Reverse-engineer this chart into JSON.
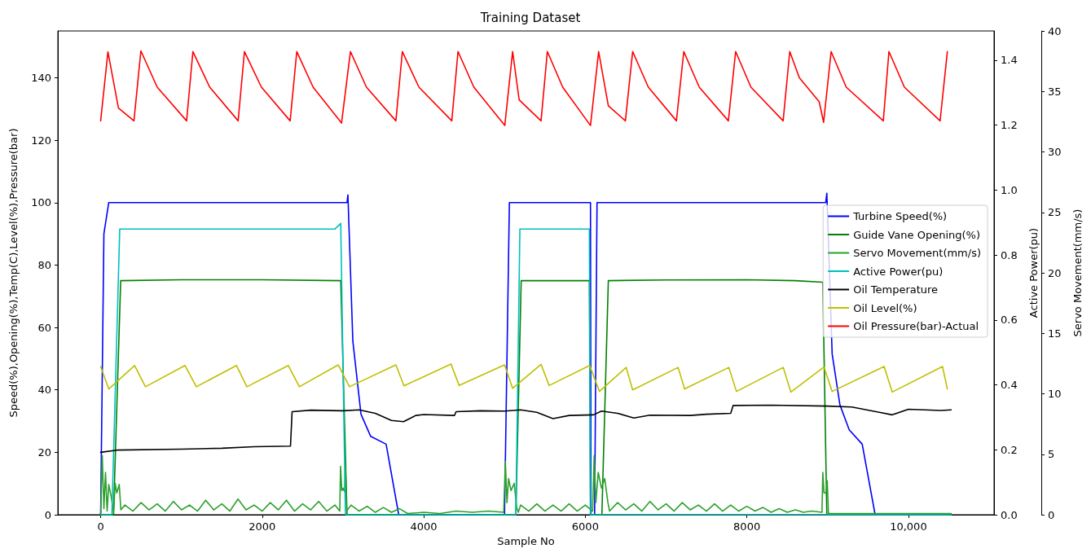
{
  "chart_data": {
    "type": "line",
    "title": "Training Dataset",
    "xlabel": "Sample No",
    "ylabel": "Speed(%),Opening(%),Temp(C),Level(%),Pressure(bar)",
    "y2label": "Active Power(pu)",
    "y3label": "Servo Movement(mm/s)",
    "xlim": [
      -530,
      11060
    ],
    "xticks": [
      0,
      2000,
      4000,
      6000,
      8000,
      {
        "value": 10000,
        "label": "10,000"
      }
    ],
    "ylim": [
      0,
      155
    ],
    "yticks": [
      0,
      20,
      40,
      60,
      80,
      100,
      120,
      140
    ],
    "y2lim": [
      0,
      1.49
    ],
    "y2ticks": [
      {
        "value": 0,
        "label": "0.0"
      },
      0.2,
      0.4,
      0.6,
      0.8,
      {
        "value": 1,
        "label": "1.0"
      },
      1.2,
      1.4
    ],
    "y3lim": [
      0,
      40
    ],
    "y3ticks": [
      0,
      5,
      10,
      15,
      20,
      25,
      30,
      35,
      40
    ],
    "grid": false,
    "legend": "right",
    "marker": "none",
    "line_style": "solid",
    "series": [
      {
        "name": "Turbine Speed(%)",
        "color": "#0000ff",
        "x": [
          0,
          40,
          100,
          3050,
          3061,
          3122,
          3223,
          3343,
          3534,
          3690,
          5000,
          5060,
          6064,
          6070,
          6115,
          6145,
          8976,
          8990,
          9056,
          9152,
          9267,
          9428,
          9588,
          10530
        ],
        "values": [
          0,
          90,
          100,
          100,
          102.5,
          55.6,
          32.2,
          25.1,
          22.6,
          0,
          0,
          100,
          100,
          0,
          0,
          100,
          100,
          103,
          51.5,
          35.2,
          27.2,
          22.6,
          0,
          0
        ]
      },
      {
        "name": "Guide Vane Opening(%)",
        "color": "#008000",
        "x": [
          0,
          159,
          248,
          1000,
          2000,
          2972,
          3050,
          5140,
          5206,
          6050,
          6064,
          6205,
          6285,
          7000,
          8000,
          8600,
          8940,
          8990,
          10530
        ],
        "values": [
          0,
          0,
          75,
          75.3,
          75.3,
          75,
          0,
          0,
          75,
          75,
          0,
          0,
          75,
          75.2,
          75.3,
          75,
          74.5,
          0,
          0
        ]
      },
      {
        "name": "Servo Movement(mm/s)",
        "color": "#2ca02c",
        "axis": "y3",
        "x": [
          0,
          20,
          40,
          60,
          80,
          100,
          130,
          160,
          180,
          200,
          230,
          250,
          300,
          400,
          500,
          600,
          700,
          800,
          900,
          1000,
          1100,
          1200,
          1300,
          1400,
          1500,
          1600,
          1700,
          1800,
          1900,
          2000,
          2100,
          2200,
          2300,
          2400,
          2500,
          2600,
          2700,
          2800,
          2900,
          2960,
          2970,
          2985,
          3000,
          3020,
          3030,
          3045,
          3100,
          3200,
          3300,
          3400,
          3500,
          3600,
          3700,
          3800,
          4000,
          4200,
          4400,
          4600,
          4800,
          4990,
          5010,
          5030,
          5050,
          5080,
          5120,
          5150,
          5170,
          5200,
          5300,
          5400,
          5500,
          5600,
          5700,
          5800,
          5900,
          6000,
          6090,
          6110,
          6130,
          6160,
          6200,
          6240,
          6280,
          6300,
          6400,
          6500,
          6600,
          6700,
          6800,
          6900,
          7000,
          7100,
          7200,
          7300,
          7400,
          7500,
          7600,
          7700,
          7800,
          7900,
          8000,
          8100,
          8200,
          8300,
          8400,
          8500,
          8600,
          8700,
          8800,
          8930,
          8940,
          8955,
          8980,
          8995,
          9010,
          9200,
          9500,
          10000,
          10530
        ],
        "values": [
          0,
          4.9,
          0.5,
          3.5,
          0.3,
          2.5,
          1.5,
          0.2,
          2.6,
          1.8,
          2.5,
          0.4,
          0.8,
          0.3,
          1.0,
          0.4,
          0.9,
          0.3,
          1.1,
          0.4,
          0.8,
          0.3,
          1.2,
          0.4,
          0.9,
          0.3,
          1.3,
          0.4,
          0.8,
          0.3,
          1.0,
          0.4,
          1.2,
          0.3,
          0.9,
          0.4,
          1.1,
          0.3,
          0.8,
          0.3,
          4.0,
          2.0,
          2.2,
          1.9,
          3.9,
          0.3,
          0.8,
          0.3,
          0.7,
          0.2,
          0.6,
          0.2,
          0.5,
          0.1,
          0.2,
          0.1,
          0.3,
          0.2,
          0.3,
          0.2,
          4.4,
          1.0,
          3.0,
          2.0,
          2.6,
          0.6,
          0.2,
          0.8,
          0.3,
          0.9,
          0.3,
          0.8,
          0.3,
          0.9,
          0.3,
          0.8,
          0.3,
          4.9,
          1.0,
          3.5,
          2.2,
          3.0,
          1.0,
          0.3,
          1.0,
          0.4,
          0.9,
          0.3,
          1.1,
          0.4,
          0.9,
          0.3,
          1.0,
          0.4,
          0.8,
          0.3,
          0.9,
          0.3,
          0.8,
          0.3,
          0.7,
          0.3,
          0.6,
          0.2,
          0.5,
          0.2,
          0.4,
          0.2,
          0.3,
          0.2,
          3.5,
          1.8,
          1.8,
          2.8,
          0.1,
          0.1,
          0.1,
          0.1,
          0.1
        ]
      },
      {
        "name": "Active Power(pu)",
        "color": "#00bfbf",
        "axis": "y2",
        "x": [
          0,
          139,
          236,
          1500,
          2900,
          2972,
          3030,
          5140,
          5190,
          6050,
          6064,
          10530
        ],
        "values": [
          0,
          0,
          0.88,
          0.88,
          0.88,
          0.897,
          0,
          0,
          0.88,
          0.88,
          0,
          0
        ]
      },
      {
        "name": "Oil Temperature",
        "color": "#000000",
        "x": [
          0,
          200,
          1000,
          1500,
          1900,
          2350,
          2370,
          2600,
          3000,
          3200,
          3400,
          3600,
          3750,
          3900,
          4000,
          4380,
          4400,
          4700,
          5000,
          5200,
          5400,
          5600,
          5800,
          6100,
          6200,
          6400,
          6600,
          6800,
          7300,
          7500,
          7800,
          7830,
          8300,
          9000,
          9300,
          9600,
          9800,
          10000,
          10400,
          10530
        ],
        "values": [
          20,
          20.7,
          21,
          21.3,
          21.8,
          22,
          33,
          33.5,
          33.3,
          33.6,
          32.5,
          30.2,
          29.8,
          31.8,
          32.1,
          31.8,
          33,
          33.3,
          33.2,
          33.6,
          32.8,
          30.8,
          31.8,
          32,
          33.2,
          32.5,
          31,
          31.9,
          31.8,
          32.2,
          32.5,
          35,
          35.1,
          34.8,
          34.5,
          33,
          32,
          33.8,
          33.4,
          33.6
        ]
      },
      {
        "name": "Oil Level(%)",
        "color": "#bfbf00",
        "x": [
          0,
          100,
          420,
          555,
          1044,
          1185,
          1682,
          1810,
          2323,
          2460,
          2942,
          3080,
          3655,
          3755,
          4337,
          4438,
          5000,
          5100,
          5452,
          5552,
          6054,
          6175,
          6506,
          6586,
          7149,
          7229,
          7777,
          7871,
          8450,
          8545,
          8955,
          9056,
          9699,
          9800,
          10422,
          10482
        ],
        "values": [
          47.5,
          40.3,
          47.8,
          41,
          47.8,
          41,
          47.8,
          41,
          47.8,
          41,
          48,
          41,
          48,
          41.3,
          48.3,
          41.4,
          48,
          40.5,
          48.2,
          41.4,
          47.8,
          39.5,
          47.2,
          40,
          47.2,
          40.3,
          47.2,
          39.5,
          47.2,
          39.3,
          47.3,
          39.5,
          47.5,
          39.3,
          47.5,
          40.3
        ]
      },
      {
        "name": "Oil Pressure(bar)-Actual",
        "color": "#ff0000",
        "x": [
          0,
          90,
          220,
          412,
          498,
          700,
          1064,
          1142,
          1350,
          1702,
          1780,
          1990,
          2346,
          2428,
          2630,
          2982,
          3092,
          3290,
          3655,
          3735,
          3940,
          4347,
          4424,
          4620,
          5003,
          5100,
          5181,
          5452,
          5530,
          5720,
          6064,
          6165,
          6285,
          6496,
          6586,
          6780,
          7128,
          7219,
          7410,
          7771,
          7861,
          8050,
          8449,
          8531,
          8650,
          8896,
          8950,
          9043,
          9230,
          9689,
          9759,
          9950,
          10392,
          10482
        ],
        "values": [
          126.2,
          148.3,
          130.3,
          126.2,
          148.6,
          137,
          126.2,
          148.4,
          137,
          126.2,
          148.4,
          137,
          126.2,
          148.4,
          137,
          125.5,
          148.4,
          137,
          126.2,
          148.4,
          137,
          126.2,
          148.4,
          137,
          124.7,
          148.4,
          132.9,
          126.2,
          148.4,
          137,
          124.7,
          148.4,
          131,
          126.2,
          148.4,
          137,
          126.2,
          148.4,
          137,
          126.2,
          148.4,
          137,
          126.2,
          148.4,
          140,
          132.3,
          125.7,
          148.4,
          137,
          126.2,
          148.4,
          137,
          126.2,
          148.4
        ]
      }
    ]
  }
}
